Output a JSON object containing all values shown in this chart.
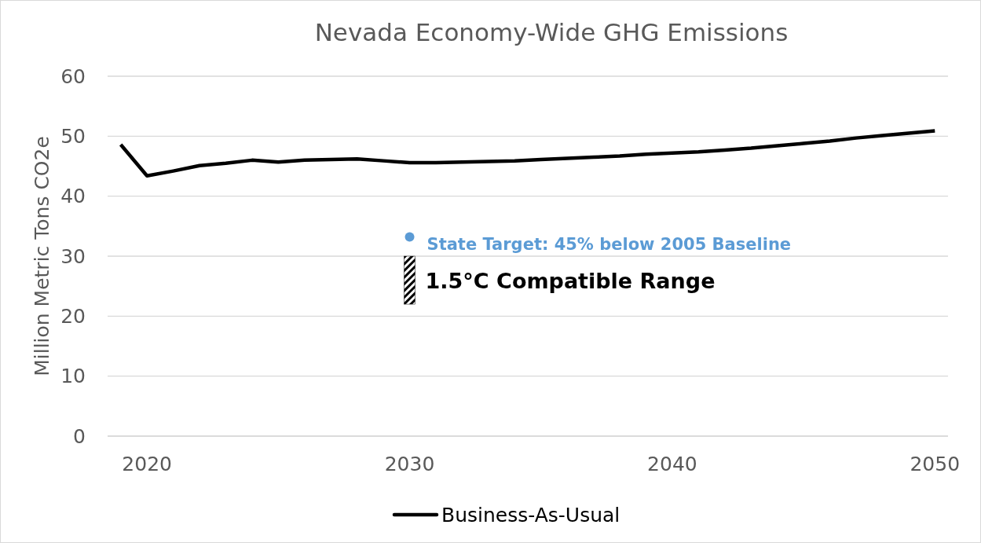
{
  "chart_data": {
    "type": "line",
    "title": "Nevada Economy-Wide GHG Emissions",
    "ylabel": "Million Metric Tons CO2e",
    "xlim": [
      2018.5,
      2050.5
    ],
    "xticks": [
      2020,
      2030,
      2040,
      2050
    ],
    "ylim": [
      0,
      60
    ],
    "yticks": [
      0,
      10,
      20,
      30,
      40,
      50,
      60
    ],
    "grid": "y",
    "legend": "bottom",
    "line_style": "solid",
    "series": [
      {
        "name": "Business-As-Usual",
        "type": "line",
        "color": "#000000",
        "x": [
          2019,
          2020,
          2021,
          2022,
          2023,
          2024,
          2025,
          2026,
          2027,
          2028,
          2029,
          2030,
          2031,
          2032,
          2033,
          2034,
          2035,
          2036,
          2037,
          2038,
          2039,
          2040,
          2041,
          2042,
          2043,
          2044,
          2045,
          2046,
          2047,
          2048,
          2049,
          2050
        ],
        "values": [
          48.6,
          43.4,
          44.2,
          45.1,
          45.5,
          46.0,
          45.7,
          46.0,
          46.1,
          46.2,
          45.9,
          45.6,
          45.6,
          45.7,
          45.8,
          45.9,
          46.1,
          46.3,
          46.5,
          46.7,
          47.0,
          47.2,
          47.4,
          47.7,
          48.0,
          48.4,
          48.8,
          49.2,
          49.7,
          50.1,
          50.5,
          50.9
        ]
      },
      {
        "name": "State Target: 45% below 2005 Baseline",
        "type": "scatter",
        "marker": "circle",
        "color": "#5b9bd5",
        "x": [
          2030
        ],
        "values": [
          33.2
        ]
      },
      {
        "name": "1.5°C Compatible Range",
        "type": "bar",
        "color": "#000000",
        "x": [
          2030
        ],
        "base": [
          22
        ],
        "values": [
          8
        ]
      }
    ]
  }
}
